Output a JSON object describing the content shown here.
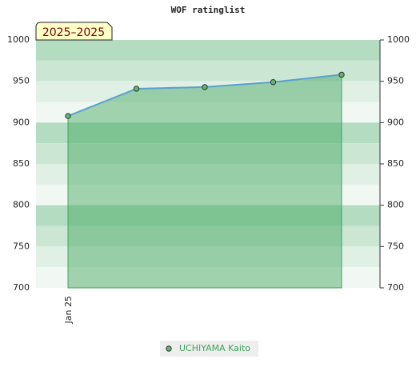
{
  "chart_data": {
    "type": "area-line",
    "title": "WOF ratinglist",
    "annotation": "2025–2025",
    "categories": [
      "Jan 25",
      null,
      null,
      null,
      null
    ],
    "series": [
      {
        "name": "UCHIYAMA Kaito",
        "color": "#5aa0d0",
        "fill": "#3fa35a",
        "values": [
          908,
          941,
          943,
          949,
          958
        ]
      }
    ],
    "ylim": [
      700,
      1000
    ],
    "yticks": [
      700,
      750,
      800,
      850,
      900,
      950,
      1000
    ],
    "band_colors": [
      "#b3dcc0",
      "#cbe7d4",
      "#e0f0e5",
      "#f1f8f3"
    ]
  }
}
